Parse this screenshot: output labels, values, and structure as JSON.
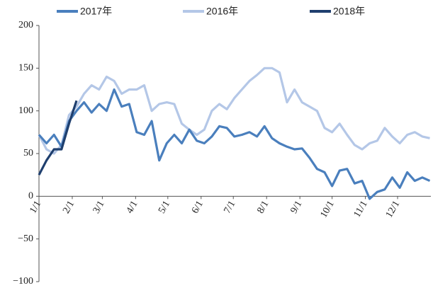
{
  "chart_data": {
    "type": "line",
    "x": [
      0,
      7,
      14,
      21,
      28,
      35,
      42,
      49,
      56,
      63,
      70,
      77,
      84,
      91,
      98,
      105,
      112,
      119,
      126,
      133,
      140,
      147,
      154,
      161,
      168,
      175,
      182,
      189,
      196,
      203,
      210,
      217,
      224,
      231,
      238,
      245,
      252,
      259,
      266,
      273,
      280,
      287,
      294,
      301,
      308,
      315,
      322,
      329,
      336,
      343,
      350,
      357,
      364
    ],
    "series": [
      {
        "name": "2017年",
        "color": "#4a7fbd",
        "values": [
          72,
          62,
          72,
          58,
          88,
          100,
          110,
          98,
          108,
          100,
          125,
          105,
          108,
          75,
          72,
          88,
          42,
          62,
          72,
          62,
          78,
          65,
          62,
          70,
          82,
          80,
          70,
          72,
          75,
          70,
          82,
          68,
          62,
          58,
          55,
          56,
          45,
          32,
          28,
          12,
          30,
          32,
          15,
          18,
          -3,
          5,
          8,
          22,
          10,
          28,
          18,
          22,
          18
        ]
      },
      {
        "name": "2016年",
        "color": "#b4c7e7",
        "values": [
          72,
          55,
          50,
          60,
          95,
          105,
          120,
          130,
          125,
          140,
          135,
          120,
          125,
          125,
          130,
          100,
          108,
          110,
          108,
          85,
          78,
          72,
          78,
          100,
          108,
          102,
          115,
          125,
          135,
          142,
          150,
          150,
          145,
          110,
          125,
          110,
          105,
          100,
          80,
          75,
          85,
          72,
          60,
          55,
          62,
          65,
          80,
          70,
          62,
          72,
          75,
          70,
          68
        ]
      },
      {
        "name": "2018年",
        "color": "#1f3f6e",
        "values": [
          25,
          42,
          55,
          55,
          85,
          112,
          null,
          null,
          null,
          null,
          null,
          null,
          null,
          null,
          null,
          null,
          null,
          null,
          null,
          null,
          null,
          null,
          null,
          null,
          null,
          null,
          null,
          null,
          null,
          null,
          null,
          null,
          null,
          null,
          null,
          null,
          null,
          null,
          null,
          null,
          null,
          null,
          null,
          null,
          null,
          null,
          null,
          null,
          null,
          null,
          null,
          null,
          null
        ]
      }
    ],
    "xlim": [
      0,
      365
    ],
    "xticks": [
      {
        "value": 0,
        "label": "1/1"
      },
      {
        "value": 31,
        "label": "2/1"
      },
      {
        "value": 59,
        "label": "3/1"
      },
      {
        "value": 90,
        "label": "4/1"
      },
      {
        "value": 120,
        "label": "5/1"
      },
      {
        "value": 151,
        "label": "6/1"
      },
      {
        "value": 181,
        "label": "7/1"
      },
      {
        "value": 212,
        "label": "8/1"
      },
      {
        "value": 243,
        "label": "9/1"
      },
      {
        "value": 273,
        "label": "10/1"
      },
      {
        "value": 304,
        "label": "11/1"
      },
      {
        "value": 334,
        "label": "12/1"
      }
    ],
    "ylim": [
      -100,
      200
    ],
    "yticks": [
      {
        "value": -100,
        "label": "−100"
      },
      {
        "value": -50,
        "label": "−50"
      },
      0,
      50,
      100,
      150,
      200
    ]
  }
}
